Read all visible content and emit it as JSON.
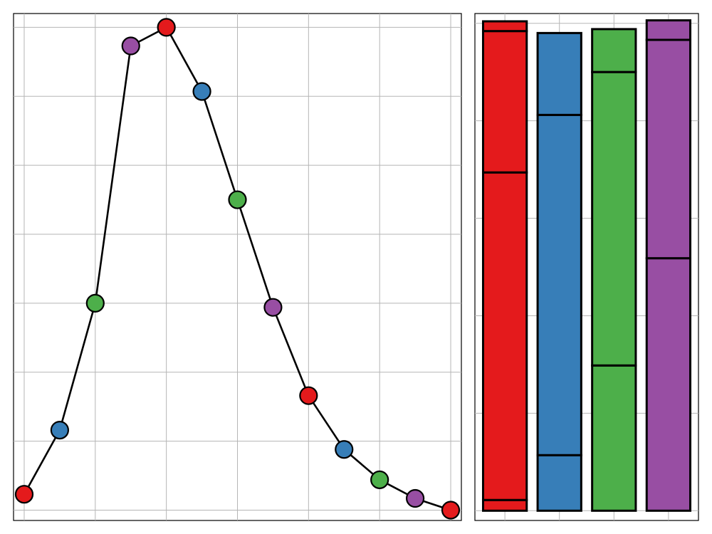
{
  "colors": {
    "red": "#e41a1c",
    "blue": "#377eb8",
    "green": "#4daf4a",
    "purple": "#984ea3",
    "grid": "#b5b5b5",
    "outline": "#000000"
  },
  "chart_data": [
    {
      "type": "line",
      "title": "",
      "xlabel": "",
      "ylabel": "",
      "grid": true,
      "xlim": [
        -0.3,
        12.3
      ],
      "ylim": [
        -0.15,
        7.2
      ],
      "x": [
        0,
        1,
        2,
        3,
        4,
        5,
        6,
        7,
        8,
        9,
        10,
        11,
        12
      ],
      "y": [
        0.23,
        1.16,
        3.0,
        6.73,
        7.0,
        6.07,
        4.5,
        2.94,
        1.66,
        0.88,
        0.44,
        0.17,
        0.0
      ],
      "point_colors": [
        "red",
        "blue",
        "green",
        "purple",
        "red",
        "blue",
        "green",
        "purple",
        "red",
        "blue",
        "green",
        "purple",
        "red"
      ]
    },
    {
      "type": "bar",
      "title": "",
      "xlabel": "",
      "ylabel": "",
      "grid": true,
      "stacked": true,
      "xlim": [
        -0.55,
        3.55
      ],
      "ylim": [
        -0.01,
        0.51
      ],
      "categories": [
        "",
        "",
        "",
        ""
      ],
      "bar_colors": [
        "red",
        "blue",
        "green",
        "purple"
      ],
      "segments": [
        [
          0.011,
          0.336,
          0.145,
          0.01
        ],
        [
          0.057,
          0.349,
          0.084
        ],
        [
          0.149,
          0.301,
          0.044
        ],
        [
          0.259,
          0.224,
          0.02
        ]
      ]
    }
  ]
}
